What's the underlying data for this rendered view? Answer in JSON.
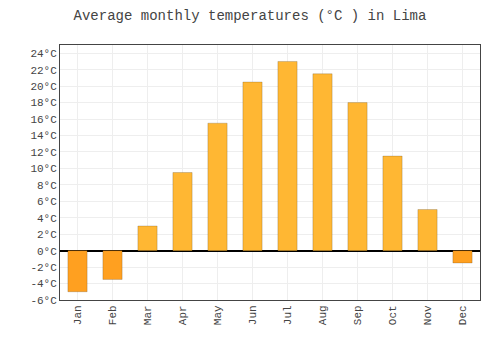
{
  "chart_data": {
    "type": "bar",
    "title": "Average monthly temperatures (°C ) in Lima",
    "categories": [
      "Jan",
      "Feb",
      "Mar",
      "Apr",
      "May",
      "Jun",
      "Jul",
      "Aug",
      "Sep",
      "Oct",
      "Nov",
      "Dec"
    ],
    "values": [
      -5.0,
      -3.5,
      3.0,
      9.5,
      15.5,
      20.5,
      23.0,
      21.5,
      18.0,
      11.5,
      5.0,
      -1.5
    ],
    "colors": [
      "#FFA020",
      "#FFA020",
      "#FFB733",
      "#FFB733",
      "#FFB733",
      "#FFB733",
      "#FFB733",
      "#FFB733",
      "#FFB733",
      "#FFB733",
      "#FFB733",
      "#FFA020"
    ],
    "ylim": [
      -6,
      25
    ],
    "yticks": [
      {
        "value": -6,
        "label": "-6°C"
      },
      {
        "value": -4,
        "label": "-4°C"
      },
      {
        "value": -2,
        "label": "-2°C"
      },
      {
        "value": 0,
        "label": "0°C"
      },
      {
        "value": 2,
        "label": "2°C"
      },
      {
        "value": 4,
        "label": "4°C"
      },
      {
        "value": 6,
        "label": "6°C"
      },
      {
        "value": 8,
        "label": "8°C"
      },
      {
        "value": 10,
        "label": "10°C"
      },
      {
        "value": 12,
        "label": "12°C"
      },
      {
        "value": 14,
        "label": "14°C"
      },
      {
        "value": 16,
        "label": "16°C"
      },
      {
        "value": 18,
        "label": "18°C"
      },
      {
        "value": 20,
        "label": "20°C"
      },
      {
        "value": 22,
        "label": "22°C"
      },
      {
        "value": 24,
        "label": "24°C"
      }
    ],
    "grid": true
  }
}
